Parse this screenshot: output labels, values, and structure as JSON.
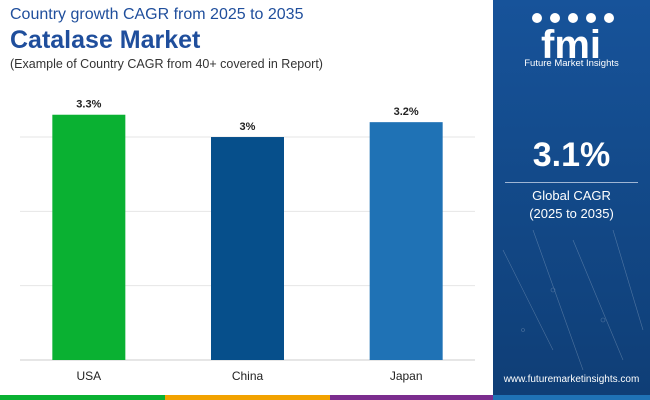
{
  "header": {
    "subtitle": "Country growth CAGR from 2025 to 2035",
    "title": "Catalase Market",
    "note": "(Example of Country CAGR from 40+ covered in Report)"
  },
  "chart_data": {
    "type": "bar",
    "categories": [
      "USA",
      "China",
      "Japan"
    ],
    "values": [
      3.3,
      3.0,
      3.2
    ],
    "data_labels": [
      "3.3%",
      "3%",
      "3.2%"
    ],
    "colors": [
      "#0ab132",
      "#064f8b",
      "#1f72b5"
    ],
    "ylim": [
      0,
      3.7
    ],
    "grid": true,
    "title": "",
    "xlabel": "",
    "ylabel": ""
  },
  "side_panel": {
    "logo_text": "fmi",
    "logo_sub": "Future Market Insights",
    "cagr_value": "3.1%",
    "cagr_label": "Global CAGR",
    "cagr_period": "(2025 to 2035)",
    "website": "www.futuremarketinsights.com"
  },
  "colors": {
    "title": "#1f4e9c",
    "panel": "#134a8a",
    "stripe": [
      "#0ab132",
      "#f2a200",
      "#7b2d8e",
      "#1f72b5"
    ]
  }
}
